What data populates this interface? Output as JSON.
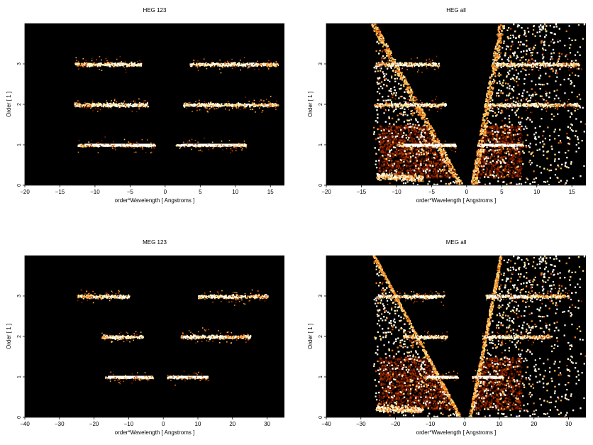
{
  "chart_data": [
    {
      "type": "heatmap",
      "title": "HEG 123",
      "xlabel": "order*Wavelength [ Angstroms ]",
      "ylabel": "Order [ 1 ]",
      "xlim": [
        -20,
        17
      ],
      "ylim": [
        0,
        4
      ],
      "xticks": [
        -20,
        -15,
        -10,
        -5,
        0,
        5,
        10,
        15
      ],
      "xtick_labels": [
        "−20",
        "−15",
        "−10",
        "−5",
        "0",
        "5",
        "10",
        "15"
      ],
      "yticks": [
        0,
        1,
        2,
        3
      ],
      "ytick_labels": [
        "0",
        "1",
        "2",
        "3"
      ],
      "colormap": "hot",
      "background": "#000000",
      "bands": [
        {
          "order": 1,
          "x_from": -12.5,
          "x_to": -1.5
        },
        {
          "order": 1,
          "x_from": 1.5,
          "x_to": 11.5
        },
        {
          "order": 2,
          "x_from": -13,
          "x_to": -2.5
        },
        {
          "order": 2,
          "x_from": 2.5,
          "x_to": 16
        },
        {
          "order": 3,
          "x_from": -13,
          "x_to": -3.5
        },
        {
          "order": 3,
          "x_from": 3.5,
          "x_to": 16
        }
      ],
      "broad_wedges": false
    },
    {
      "type": "heatmap",
      "title": "HEG all",
      "xlabel": "order*Wavelength [ Angstroms ]",
      "ylabel": "Order [ 1 ]",
      "xlim": [
        -20,
        17
      ],
      "ylim": [
        0,
        4
      ],
      "xticks": [
        -20,
        -15,
        -10,
        -5,
        0,
        5,
        10,
        15
      ],
      "xtick_labels": [
        "−20",
        "−15",
        "−10",
        "−5",
        "0",
        "5",
        "10",
        "15"
      ],
      "yticks": [
        0,
        1,
        2,
        3
      ],
      "ytick_labels": [
        "0",
        "1",
        "2",
        "3"
      ],
      "colormap": "hot",
      "background": "#000000",
      "bands": [
        {
          "order": 1,
          "x_from": -10,
          "x_to": -1.5
        },
        {
          "order": 1,
          "x_from": 1.5,
          "x_to": 8
        },
        {
          "order": 2,
          "x_from": -13,
          "x_to": -3
        },
        {
          "order": 2,
          "x_from": 3,
          "x_to": 16
        },
        {
          "order": 3,
          "x_from": -13,
          "x_to": -4
        },
        {
          "order": 3,
          "x_from": 4,
          "x_to": 16
        }
      ],
      "broad_wedges": true,
      "wedge": {
        "left_x_at_top": -13,
        "left_x_at_bottom": -0.5,
        "right_x_at_top": 4.5,
        "right_x_at_bottom": 0.5
      }
    },
    {
      "type": "heatmap",
      "title": "MEG 123",
      "xlabel": "order*Wavelength [ Angstroms ]",
      "ylabel": "Order [ 1 ]",
      "xlim": [
        -40,
        35
      ],
      "ylim": [
        0,
        4
      ],
      "xticks": [
        -40,
        -30,
        -20,
        -10,
        0,
        10,
        20,
        30
      ],
      "xtick_labels": [
        "−40",
        "−30",
        "−20",
        "−10",
        "0",
        "10",
        "20",
        "30"
      ],
      "yticks": [
        0,
        1,
        2,
        3
      ],
      "ytick_labels": [
        "0",
        "1",
        "2",
        "3"
      ],
      "colormap": "hot",
      "background": "#000000",
      "bands": [
        {
          "order": 1,
          "x_from": -17,
          "x_to": -3
        },
        {
          "order": 1,
          "x_from": 1,
          "x_to": 13
        },
        {
          "order": 2,
          "x_from": -18,
          "x_to": -6
        },
        {
          "order": 2,
          "x_from": 5,
          "x_to": 25
        },
        {
          "order": 3,
          "x_from": -25,
          "x_to": -10
        },
        {
          "order": 3,
          "x_from": 10,
          "x_to": 30
        }
      ],
      "broad_wedges": false
    },
    {
      "type": "heatmap",
      "title": "MEG all",
      "xlabel": "order*Wavelength [ Angstroms ]",
      "ylabel": "Order [ 1 ]",
      "xlim": [
        -40,
        35
      ],
      "ylim": [
        0,
        4
      ],
      "xticks": [
        -40,
        -30,
        -20,
        -10,
        0,
        10,
        20,
        30
      ],
      "xtick_labels": [
        "−40",
        "−30",
        "−20",
        "−10",
        "0",
        "10",
        "20",
        "30"
      ],
      "yticks": [
        0,
        1,
        2,
        3
      ],
      "ytick_labels": [
        "0",
        "1",
        "2",
        "3"
      ],
      "colormap": "hot",
      "background": "#000000",
      "bands": [
        {
          "order": 1,
          "x_from": -12,
          "x_to": -2
        },
        {
          "order": 1,
          "x_from": 2,
          "x_to": 11
        },
        {
          "order": 2,
          "x_from": -18,
          "x_to": -5
        },
        {
          "order": 2,
          "x_from": 5,
          "x_to": 25
        },
        {
          "order": 3,
          "x_from": -25,
          "x_to": -6
        },
        {
          "order": 3,
          "x_from": 6,
          "x_to": 30
        }
      ],
      "broad_wedges": true,
      "wedge": {
        "left_x_at_top": -26,
        "left_x_at_bottom": -1,
        "right_x_at_top": 10,
        "right_x_at_bottom": 1
      }
    }
  ]
}
